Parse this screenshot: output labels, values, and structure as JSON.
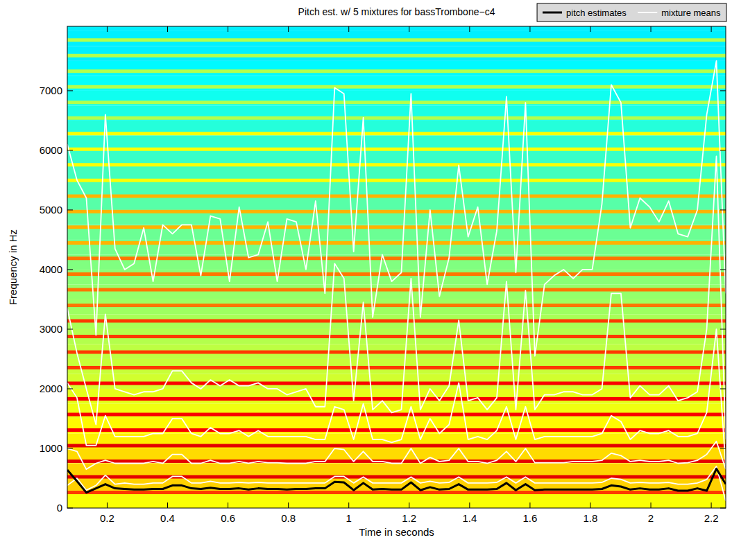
{
  "chart_data": {
    "type": "line",
    "title": "Pitch est. w/ 5 mixtures for bassTrombone−c4",
    "x_label": "Time in seconds",
    "y_label": "Frequency in Hz",
    "xlim": [
      0.068,
      2.248
    ],
    "ylim": [
      0,
      8080
    ],
    "xticks": [
      0.2,
      0.4,
      0.6,
      0.8,
      1,
      1.2,
      1.4,
      1.6,
      1.8,
      2,
      2.2
    ],
    "yticks": [
      0,
      1000,
      2000,
      3000,
      4000,
      5000,
      6000,
      7000
    ],
    "grid": false,
    "legend": "top",
    "x": [
      0.068,
      0.1,
      0.131,
      0.163,
      0.194,
      0.226,
      0.258,
      0.289,
      0.321,
      0.352,
      0.384,
      0.416,
      0.447,
      0.479,
      0.51,
      0.542,
      0.574,
      0.605,
      0.637,
      0.668,
      0.7,
      0.732,
      0.763,
      0.795,
      0.826,
      0.858,
      0.89,
      0.921,
      0.953,
      0.984,
      1.016,
      1.048,
      1.079,
      1.111,
      1.142,
      1.174,
      1.206,
      1.237,
      1.269,
      1.3,
      1.332,
      1.364,
      1.395,
      1.427,
      1.458,
      1.49,
      1.522,
      1.553,
      1.585,
      1.616,
      1.648,
      1.68,
      1.711,
      1.743,
      1.774,
      1.806,
      1.838,
      1.869,
      1.901,
      1.932,
      1.964,
      1.996,
      2.027,
      2.059,
      2.09,
      2.122,
      2.154,
      2.185,
      2.217,
      2.248
    ],
    "series": [
      {
        "name": "pitch estimates",
        "color": "#000000",
        "line_style": "solid",
        "values": [
          640,
          450,
          260,
          330,
          400,
          330,
          320,
          310,
          310,
          320,
          320,
          380,
          380,
          330,
          320,
          340,
          320,
          320,
          330,
          310,
          330,
          320,
          320,
          310,
          320,
          320,
          330,
          330,
          440,
          430,
          300,
          420,
          310,
          320,
          310,
          310,
          430,
          300,
          350,
          310,
          320,
          400,
          310,
          310,
          310,
          320,
          420,
          300,
          400,
          300,
          310,
          310,
          310,
          310,
          310,
          310,
          320,
          380,
          360,
          310,
          330,
          310,
          310,
          330,
          290,
          290,
          330,
          290,
          660,
          400
        ]
      },
      {
        "name": "mixture means",
        "color": "#ffffff",
        "line_style": "solid",
        "values": [
          380,
          500,
          300,
          380,
          550,
          400,
          420,
          400,
          400,
          420,
          420,
          530,
          530,
          420,
          420,
          450,
          420,
          420,
          430,
          420,
          430,
          420,
          420,
          420,
          420,
          420,
          420,
          420,
          530,
          530,
          420,
          520,
          420,
          420,
          420,
          420,
          520,
          420,
          450,
          420,
          430,
          520,
          420,
          420,
          420,
          430,
          520,
          420,
          520,
          420,
          420,
          420,
          420,
          420,
          420,
          420,
          430,
          500,
          480,
          420,
          430,
          420,
          420,
          430,
          400,
          400,
          420,
          480,
          700,
          120
        ]
      },
      {
        "name": "mixture means",
        "color": "#ffffff",
        "line_style": "solid",
        "values": [
          1000,
          950,
          650,
          750,
          800,
          750,
          750,
          750,
          750,
          780,
          750,
          900,
          900,
          750,
          750,
          800,
          750,
          750,
          780,
          750,
          780,
          760,
          760,
          750,
          750,
          750,
          780,
          780,
          1000,
          980,
          780,
          950,
          780,
          780,
          750,
          750,
          1000,
          750,
          850,
          780,
          800,
          1000,
          780,
          780,
          750,
          800,
          950,
          780,
          1000,
          760,
          760,
          760,
          760,
          780,
          780,
          780,
          800,
          920,
          880,
          780,
          800,
          780,
          780,
          800,
          750,
          760,
          800,
          900,
          1120,
          650
        ]
      },
      {
        "name": "mixture means",
        "color": "#ffffff",
        "line_style": "solid",
        "values": [
          2100,
          1850,
          1050,
          1050,
          1550,
          1200,
          1200,
          1200,
          1200,
          1250,
          1250,
          1500,
          1500,
          1250,
          1200,
          1350,
          1250,
          1250,
          1300,
          1200,
          1300,
          1200,
          1200,
          1200,
          1200,
          1200,
          1150,
          1150,
          1700,
          1650,
          1150,
          1750,
          1150,
          1150,
          1100,
          1150,
          1700,
          1150,
          1500,
          1250,
          1400,
          2100,
          1150,
          1200,
          1150,
          1300,
          1700,
          1150,
          1700,
          1150,
          1200,
          1200,
          1200,
          1200,
          1200,
          1200,
          1250,
          1550,
          1450,
          1150,
          1300,
          1250,
          1250,
          1300,
          1200,
          1200,
          1250,
          1600,
          3000,
          700
        ]
      },
      {
        "name": "mixture means",
        "color": "#ffffff",
        "line_style": "solid",
        "values": [
          3350,
          2600,
          2000,
          1400,
          3250,
          2000,
          1950,
          1900,
          1950,
          1950,
          2000,
          2300,
          2300,
          2100,
          2000,
          2150,
          2050,
          2150,
          2050,
          2050,
          2100,
          2000,
          2000,
          1900,
          1950,
          2000,
          1700,
          1700,
          4100,
          3850,
          1800,
          3450,
          1650,
          1800,
          1600,
          1650,
          3850,
          1650,
          2000,
          1800,
          2050,
          3150,
          1800,
          1850,
          1650,
          1850,
          3800,
          1650,
          3650,
          1650,
          1900,
          1900,
          1950,
          1950,
          1900,
          1900,
          2000,
          3600,
          3600,
          1850,
          2050,
          1900,
          1900,
          2050,
          1800,
          1850,
          1950,
          3000,
          5900,
          1150
        ]
      },
      {
        "name": "mixture means",
        "color": "#ffffff",
        "line_style": "solid",
        "values": [
          6100,
          5500,
          5200,
          2900,
          6600,
          4350,
          4000,
          4100,
          4700,
          3800,
          4750,
          4600,
          4750,
          4750,
          3900,
          4900,
          4850,
          3800,
          5050,
          4200,
          4250,
          4800,
          3800,
          4850,
          4800,
          4000,
          5150,
          3600,
          7050,
          6950,
          4300,
          6550,
          3200,
          4250,
          3800,
          3950,
          6950,
          3200,
          5000,
          3550,
          4200,
          5750,
          4550,
          5050,
          3750,
          4650,
          6900,
          3950,
          6800,
          2550,
          3750,
          3900,
          4000,
          3850,
          4000,
          4000,
          5100,
          7100,
          6800,
          4700,
          5200,
          5050,
          4800,
          5150,
          4600,
          4550,
          5000,
          6600,
          7500,
          3600
        ]
      }
    ],
    "spectrogram": {
      "band_edges": [
        0,
        250,
        500,
        750,
        1000,
        1250,
        1500,
        1750,
        2000,
        2250,
        2500,
        2750,
        3000,
        3250,
        3500,
        3750,
        4000,
        4250,
        4500,
        4750,
        5000,
        5250,
        5500,
        5750,
        6000,
        6250,
        6500,
        6750,
        7000,
        7250,
        7500,
        7750,
        8000,
        8250
      ],
      "levels": [
        0.62,
        0.67,
        0.67,
        0.66,
        0.64,
        0.63,
        0.61,
        0.6,
        0.58,
        0.57,
        0.56,
        0.55,
        0.54,
        0.53,
        0.52,
        0.51,
        0.5,
        0.49,
        0.48,
        0.47,
        0.46,
        0.45,
        0.44,
        0.43,
        0.42,
        0.41,
        0.4,
        0.39,
        0.38,
        0.37,
        0.36,
        0.36,
        0.36
      ],
      "harmonics": [
        262,
        523,
        785,
        1047,
        1308,
        1570,
        1832,
        2093,
        2355,
        2617,
        2878,
        3140,
        3402,
        3663,
        3925,
        4187,
        4448,
        4710,
        4972,
        5233,
        5495,
        5757,
        6018,
        6280,
        6542,
        6803,
        7065,
        7327,
        7588,
        7850
      ],
      "harmonic_levels": [
        0.82,
        0.9,
        0.9,
        0.9,
        0.88,
        0.88,
        0.88,
        0.88,
        0.82,
        0.82,
        0.82,
        0.82,
        0.76,
        0.76,
        0.76,
        0.76,
        0.7,
        0.7,
        0.7,
        0.7,
        0.62,
        0.62,
        0.62,
        0.62,
        0.55,
        0.55,
        0.55,
        0.55,
        0.55,
        0.55
      ],
      "clim": [
        0,
        1
      ]
    }
  }
}
